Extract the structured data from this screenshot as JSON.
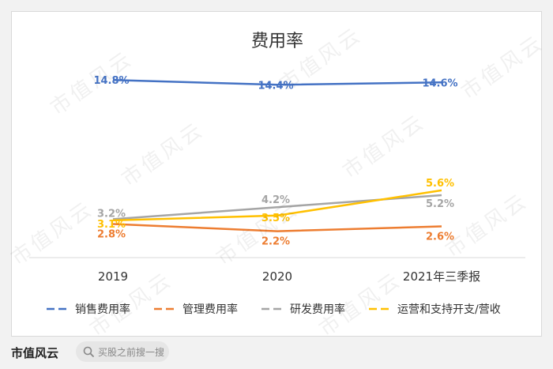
{
  "chart_data": {
    "type": "line",
    "title": "费用率",
    "categories": [
      "2019",
      "2020",
      "2021年三季报"
    ],
    "ylim": [
      0,
      16
    ],
    "grid": false,
    "legend": "bottom",
    "series": [
      {
        "name": "销售费用率",
        "values": [
          14.8,
          14.4,
          14.6
        ],
        "labels": [
          "14.8%",
          "14.4%",
          "14.6%"
        ],
        "color": "#4472c4"
      },
      {
        "name": "管理费用率",
        "values": [
          2.8,
          2.2,
          2.6
        ],
        "labels": [
          "2.8%",
          "2.2%",
          "2.6%"
        ],
        "color": "#ed7d31"
      },
      {
        "name": "研发费用率",
        "values": [
          3.2,
          4.2,
          5.2
        ],
        "labels": [
          "3.2%",
          "4.2%",
          "5.2%"
        ],
        "color": "#a5a5a5"
      },
      {
        "name": "运营和支持开支/营收",
        "values": [
          3.1,
          3.5,
          5.6
        ],
        "labels": [
          "3.1%",
          "3.5%",
          "5.6%"
        ],
        "color": "#ffc000"
      }
    ]
  },
  "footer": {
    "brand": "市值风云",
    "search_placeholder": "买股之前搜一搜"
  }
}
